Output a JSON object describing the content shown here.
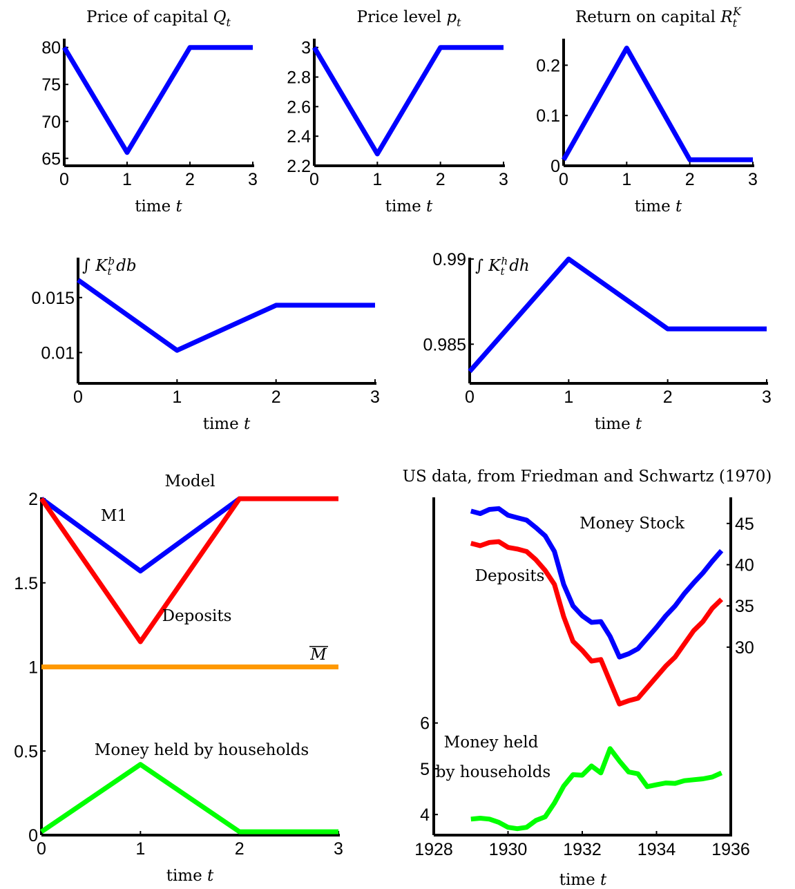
{
  "colors": {
    "blue": "#0000ff",
    "red": "#ff0000",
    "orange": "#ff9900",
    "green": "#00ff00",
    "axis": "#000000"
  },
  "chart_data": [
    {
      "type": "line",
      "title": "Price of capital Q_t",
      "xlabel": "time t",
      "ylabel": "",
      "x": [
        0,
        1,
        2,
        3
      ],
      "xlim": [
        0,
        3
      ],
      "ylim": [
        64,
        81
      ],
      "xticks": [
        "0",
        "1",
        "2",
        "3"
      ],
      "yticks": [
        "65",
        "70",
        "75",
        "80"
      ],
      "series": [
        {
          "color": "blue",
          "values": [
            80,
            65.8,
            80,
            80
          ]
        }
      ]
    },
    {
      "type": "line",
      "title": "Price level p_t",
      "xlabel": "time t",
      "ylabel": "",
      "x": [
        0,
        1,
        2,
        3
      ],
      "xlim": [
        0,
        3
      ],
      "ylim": [
        2.2,
        3.05
      ],
      "xticks": [
        "0",
        "1",
        "2",
        "3"
      ],
      "yticks": [
        "2.2",
        "2.4",
        "2.6",
        "2.8",
        "3"
      ],
      "series": [
        {
          "color": "blue",
          "values": [
            3,
            2.28,
            3,
            3
          ]
        }
      ]
    },
    {
      "type": "line",
      "title": "Return on capital R_t^K",
      "xlabel": "time t",
      "ylabel": "",
      "x": [
        0,
        1,
        2,
        3
      ],
      "xlim": [
        0,
        3
      ],
      "ylim": [
        0,
        0.25
      ],
      "xticks": [
        "0",
        "1",
        "2",
        "3"
      ],
      "yticks": [
        "0",
        "0.1",
        "0.2"
      ],
      "series": [
        {
          "color": "blue",
          "values": [
            0.012,
            0.234,
            0.012,
            0.012
          ]
        }
      ]
    },
    {
      "type": "line",
      "title": "",
      "annotation": "∫ K_t^b db",
      "xlabel": "time t",
      "ylabel": "",
      "x": [
        0,
        1,
        2,
        3
      ],
      "xlim": [
        0,
        3
      ],
      "ylim": [
        0.0072,
        0.0185
      ],
      "xticks": [
        "0",
        "1",
        "2",
        "3"
      ],
      "yticks": [
        "0.01",
        "0.015"
      ],
      "series": [
        {
          "color": "blue",
          "values": [
            0.0166,
            0.0102,
            0.0143,
            0.0143
          ]
        }
      ]
    },
    {
      "type": "line",
      "title": "",
      "annotation": "∫ K_t^h dh",
      "xlabel": "time t",
      "ylabel": "",
      "x": [
        0,
        1,
        2,
        3
      ],
      "xlim": [
        0,
        3
      ],
      "ylim": [
        0.9827,
        0.99
      ],
      "xticks": [
        "0",
        "1",
        "2",
        "3"
      ],
      "yticks": [
        "0.985",
        "0.99"
      ],
      "series": [
        {
          "color": "blue",
          "values": [
            0.9834,
            0.99,
            0.9859,
            0.9859
          ]
        }
      ]
    },
    {
      "type": "line",
      "title": "Model",
      "xlabel": "time t",
      "ylabel": "",
      "x": [
        0,
        1,
        2,
        3
      ],
      "xlim": [
        0,
        3
      ],
      "ylim": [
        0,
        2
      ],
      "xticks": [
        "0",
        "1",
        "2",
        "3"
      ],
      "yticks": [
        "0",
        "0.5",
        "1",
        "1.5",
        "2"
      ],
      "series": [
        {
          "name": "M1",
          "color": "blue",
          "values": [
            2,
            1.57,
            2,
            2
          ]
        },
        {
          "name": "Deposits",
          "color": "red",
          "values": [
            2,
            1.15,
            2,
            2
          ]
        },
        {
          "name": "M̄",
          "color": "orange",
          "values": [
            1,
            1,
            1,
            1
          ]
        },
        {
          "name": "Money held by households",
          "color": "green",
          "values": [
            0.02,
            0.42,
            0.02,
            0.02
          ]
        }
      ]
    },
    {
      "type": "line",
      "title": "US data, from Friedman and Schwartz (1970)",
      "xlabel": "time t",
      "ylabel": "",
      "xlim": [
        1928,
        1936
      ],
      "xticks": [
        "1928",
        "1930",
        "1932",
        "1934",
        "1936"
      ],
      "left_axis": {
        "ylim": [
          3.55,
          10.9
        ],
        "yticks": [
          "4",
          "5",
          "6"
        ]
      },
      "right_axis": {
        "ylim": [
          7.2,
          48
        ],
        "yticks": [
          "30",
          "35",
          "40",
          "45"
        ]
      },
      "series": [
        {
          "name": "Money Stock",
          "color": "blue",
          "axis": "right",
          "x": [
            1929.0,
            1929.25,
            1929.5,
            1929.75,
            1930.0,
            1930.25,
            1930.5,
            1930.75,
            1931.0,
            1931.25,
            1931.5,
            1931.75,
            1932.0,
            1932.25,
            1932.5,
            1932.75,
            1933.0,
            1933.25,
            1933.5,
            1933.75,
            1934.0,
            1934.25,
            1934.5,
            1934.75,
            1935.0,
            1935.25,
            1935.5,
            1935.75
          ],
          "values": [
            46.5,
            46.2,
            46.7,
            46.8,
            46.0,
            45.7,
            45.4,
            44.5,
            43.5,
            41.6,
            37.6,
            35.0,
            33.8,
            33.0,
            33.1,
            31.3,
            28.8,
            29.2,
            29.8,
            31.1,
            32.4,
            33.8,
            35.0,
            36.5,
            37.8,
            39.0,
            40.4,
            41.7
          ]
        },
        {
          "name": "Deposits",
          "color": "red",
          "axis": "right",
          "x": [
            1929.0,
            1929.25,
            1929.5,
            1929.75,
            1930.0,
            1930.25,
            1930.5,
            1930.75,
            1931.0,
            1931.25,
            1931.5,
            1931.75,
            1932.0,
            1932.25,
            1932.5,
            1932.75,
            1933.0,
            1933.25,
            1933.5,
            1933.75,
            1934.0,
            1934.25,
            1934.5,
            1934.75,
            1935.0,
            1935.25,
            1935.5,
            1935.75
          ],
          "values": [
            42.6,
            42.3,
            42.7,
            42.8,
            42.1,
            41.9,
            41.6,
            40.6,
            39.3,
            37.6,
            33.7,
            30.7,
            29.6,
            28.3,
            28.5,
            25.8,
            23.1,
            23.5,
            23.8,
            25.1,
            26.4,
            27.7,
            28.8,
            30.4,
            32.0,
            33.1,
            34.7,
            35.8
          ]
        },
        {
          "name": "Money held by households",
          "color": "green",
          "axis": "left",
          "x": [
            1929.0,
            1929.25,
            1929.5,
            1929.75,
            1930.0,
            1930.25,
            1930.5,
            1930.75,
            1931.0,
            1931.25,
            1931.5,
            1931.75,
            1932.0,
            1932.25,
            1932.5,
            1932.75,
            1933.0,
            1933.25,
            1933.5,
            1933.75,
            1934.0,
            1934.25,
            1934.5,
            1934.75,
            1935.0,
            1935.25,
            1935.5,
            1935.75
          ],
          "values": [
            3.9,
            3.92,
            3.9,
            3.83,
            3.72,
            3.69,
            3.72,
            3.87,
            3.95,
            4.25,
            4.62,
            4.87,
            4.86,
            5.06,
            4.91,
            5.44,
            5.17,
            4.93,
            4.89,
            4.61,
            4.65,
            4.69,
            4.68,
            4.74,
            4.76,
            4.78,
            4.82,
            4.91
          ]
        }
      ]
    }
  ]
}
